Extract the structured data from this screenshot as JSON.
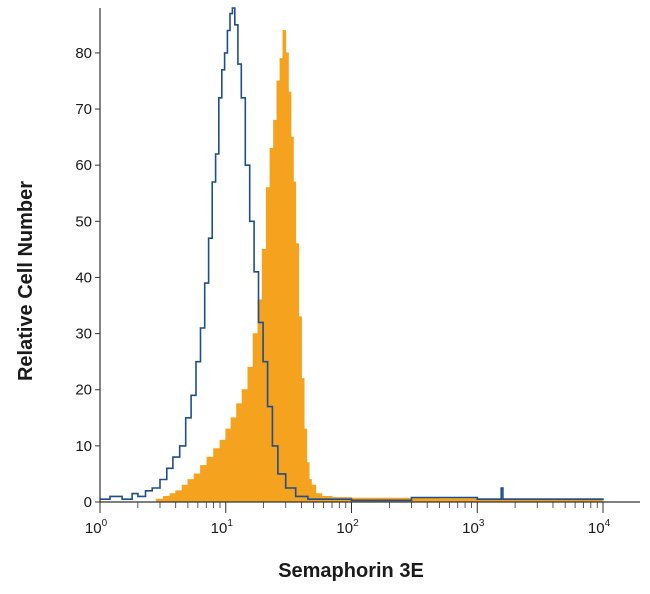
{
  "chart_data": {
    "type": "area",
    "xlabel": "Semaphorin 3E",
    "ylabel": "Relative Cell Number",
    "xscale": "log",
    "xlim": [
      1,
      10000
    ],
    "ylim": [
      0,
      88
    ],
    "grid": false,
    "legend": "none",
    "x_ticks": [
      {
        "value": 1,
        "base": "10",
        "exp": "0"
      },
      {
        "value": 10,
        "base": "10",
        "exp": "1"
      },
      {
        "value": 100,
        "base": "10",
        "exp": "2"
      },
      {
        "value": 1000,
        "base": "10",
        "exp": "3"
      },
      {
        "value": 10000,
        "base": "10",
        "exp": "4"
      }
    ],
    "y_ticks": [
      0,
      10,
      20,
      30,
      40,
      50,
      60,
      70,
      80
    ],
    "series": [
      {
        "style": "outline",
        "color": "#1f4e8c",
        "x": [
          1.0,
          1.2,
          1.5,
          1.8,
          2.0,
          2.3,
          2.6,
          3.0,
          3.4,
          3.8,
          4.3,
          4.8,
          5.3,
          5.8,
          6.3,
          6.8,
          7.3,
          7.8,
          8.3,
          8.8,
          9.3,
          9.8,
          10.3,
          10.8,
          11.3,
          11.8,
          12.5,
          13.3,
          14.3,
          15.5,
          16.8,
          18.2,
          19.8,
          21.5,
          23.5,
          26.0,
          30.0,
          36.0,
          45.0,
          60.0,
          100.0,
          300.0,
          1000.0,
          1500.0,
          1550.0,
          1600.0,
          3000.0,
          10000.0
        ],
        "y": [
          0.5,
          1,
          0.5,
          1.5,
          1,
          2,
          2.5,
          4,
          6,
          8,
          10,
          15,
          19,
          25,
          31,
          39,
          47,
          57,
          62,
          72,
          77,
          80,
          84,
          87,
          88,
          85,
          78,
          72,
          60,
          50,
          41,
          32,
          25,
          17,
          10,
          5,
          2.5,
          1,
          0.5,
          0.5,
          0.3,
          0.8,
          0.5,
          0.5,
          2.5,
          0.5,
          0.5,
          0.3
        ]
      },
      {
        "style": "filled",
        "color": "#f5a21f",
        "x": [
          2.8,
          3.2,
          3.6,
          4.0,
          4.5,
          5.0,
          5.6,
          6.3,
          7.1,
          8.0,
          9.0,
          10.0,
          11.0,
          12.2,
          13.5,
          15.0,
          16.5,
          18.0,
          19.5,
          21.0,
          22.5,
          24.0,
          25.5,
          27.0,
          28.5,
          30.0,
          31.5,
          33.0,
          34.5,
          36.0,
          38.0,
          40.0,
          42.0,
          44.0,
          46.0,
          48.0,
          52.0,
          58.0,
          70.0,
          100.0,
          200.0,
          500.0,
          1000.0,
          2000.0,
          5000.0,
          9500.0
        ],
        "y": [
          0.5,
          1,
          1.5,
          2,
          3,
          4,
          5,
          6.5,
          8,
          9.5,
          11,
          13,
          15,
          17.5,
          20,
          24,
          30,
          36,
          45,
          56,
          63,
          68,
          75,
          79,
          84,
          80,
          73,
          65,
          57,
          46,
          33,
          22,
          13,
          7,
          4,
          3,
          1.5,
          1,
          0.8,
          0.7,
          0.7,
          0.6,
          0.6,
          0.6,
          0.6,
          0.6
        ]
      }
    ]
  }
}
